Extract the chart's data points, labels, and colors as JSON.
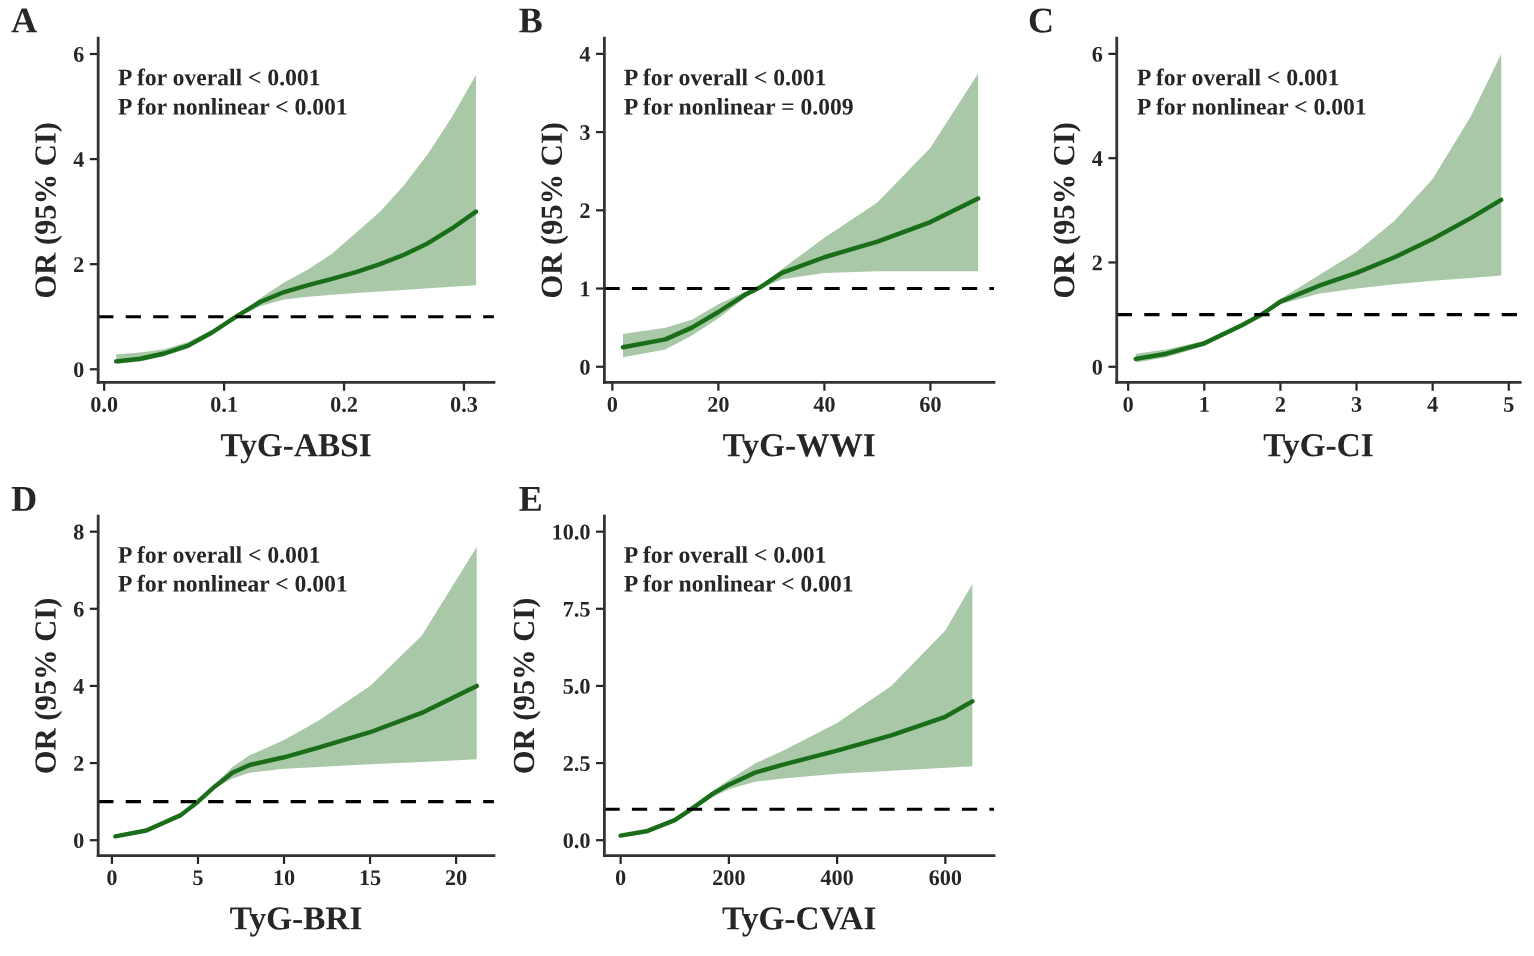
{
  "chart_data": [
    {
      "type": "line",
      "title": "A",
      "xlabel": "TyG-ABSI",
      "ylabel": "OR (95% CI)",
      "annotations": [
        "P for overall < 0.001",
        "P for nonlinear < 0.001"
      ],
      "xlim": [
        -0.005,
        0.325
      ],
      "xticks": [
        {
          "value": 0,
          "label": "0.0"
        },
        0.1,
        0.2,
        0.3
      ],
      "ylim": [
        -0.25,
        6.3
      ],
      "yticks": [
        0,
        2,
        4,
        6
      ],
      "grid": false,
      "legend": false,
      "ref_lines": [
        {
          "axis": "y",
          "value": 1,
          "color": "#000000",
          "line_style": "dashed"
        }
      ],
      "series": [
        {
          "color": "#1a6e1a",
          "x": [
            0.01,
            0.03,
            0.05,
            0.07,
            0.09,
            0.11,
            0.13,
            0.15,
            0.17,
            0.19,
            0.21,
            0.23,
            0.25,
            0.27,
            0.29,
            0.31
          ],
          "values": [
            0.15,
            0.2,
            0.3,
            0.45,
            0.7,
            1.0,
            1.28,
            1.47,
            1.6,
            1.72,
            1.85,
            2.0,
            2.18,
            2.4,
            2.68,
            3.0
          ],
          "lower": [
            0.1,
            0.15,
            0.25,
            0.4,
            0.67,
            0.98,
            1.2,
            1.33,
            1.38,
            1.42,
            1.45,
            1.48,
            1.51,
            1.54,
            1.57,
            1.6
          ],
          "upper": [
            0.28,
            0.32,
            0.38,
            0.52,
            0.75,
            1.02,
            1.35,
            1.65,
            1.9,
            2.2,
            2.6,
            3.0,
            3.5,
            4.1,
            4.8,
            5.6
          ]
        }
      ]
    },
    {
      "type": "line",
      "title": "B",
      "xlabel": "TyG-WWI",
      "ylabel": "OR (95% CI)",
      "annotations": [
        "P for overall < 0.001",
        "P for nonlinear = 0.009"
      ],
      "xlim": [
        -1.5,
        72
      ],
      "xticks": [
        0,
        20,
        40,
        60
      ],
      "ylim": [
        -0.2,
        4.2
      ],
      "yticks": [
        0,
        1,
        2,
        3,
        4
      ],
      "grid": false,
      "legend": false,
      "ref_lines": [
        {
          "axis": "y",
          "value": 1,
          "color": "#000000",
          "line_style": "dashed"
        }
      ],
      "series": [
        {
          "color": "#1a6e1a",
          "x": [
            2,
            10,
            15,
            20,
            25,
            28,
            32,
            40,
            50,
            60,
            69
          ],
          "values": [
            0.25,
            0.35,
            0.5,
            0.7,
            0.92,
            1.02,
            1.2,
            1.4,
            1.6,
            1.85,
            2.15
          ],
          "lower": [
            0.12,
            0.22,
            0.4,
            0.62,
            0.88,
            1.0,
            1.12,
            1.2,
            1.22,
            1.22,
            1.22
          ],
          "upper": [
            0.42,
            0.5,
            0.6,
            0.8,
            0.96,
            1.04,
            1.25,
            1.65,
            2.1,
            2.8,
            3.75
          ]
        }
      ]
    },
    {
      "type": "line",
      "title": "C",
      "xlabel": "TyG-CI",
      "ylabel": "OR (95% CI)",
      "annotations": [
        "P for overall < 0.001",
        "P for nonlinear < 0.001"
      ],
      "xlim": [
        -0.15,
        5.15
      ],
      "xticks": [
        0,
        1,
        2,
        3,
        4,
        5
      ],
      "ylim": [
        -0.3,
        6.3
      ],
      "yticks": [
        0,
        2,
        4,
        6
      ],
      "grid": false,
      "legend": false,
      "ref_lines": [
        {
          "axis": "y",
          "value": 1,
          "color": "#000000",
          "line_style": "dashed"
        }
      ],
      "series": [
        {
          "color": "#1a6e1a",
          "x": [
            0.1,
            0.5,
            1.0,
            1.5,
            1.75,
            2.0,
            2.5,
            3.0,
            3.5,
            4.0,
            4.5,
            4.9
          ],
          "values": [
            0.15,
            0.25,
            0.45,
            0.8,
            1.0,
            1.25,
            1.55,
            1.8,
            2.1,
            2.45,
            2.85,
            3.2
          ],
          "lower": [
            0.08,
            0.18,
            0.4,
            0.76,
            0.98,
            1.2,
            1.4,
            1.5,
            1.58,
            1.65,
            1.7,
            1.75
          ],
          "upper": [
            0.25,
            0.33,
            0.5,
            0.84,
            1.02,
            1.3,
            1.75,
            2.2,
            2.8,
            3.6,
            4.8,
            6.0
          ]
        }
      ]
    },
    {
      "type": "line",
      "title": "D",
      "xlabel": "TyG-BRI",
      "ylabel": "OR (95% CI)",
      "annotations": [
        "P for overall < 0.001",
        "P for nonlinear < 0.001"
      ],
      "xlim": [
        -0.8,
        22.2
      ],
      "xticks": [
        0,
        5,
        10,
        15,
        20
      ],
      "ylim": [
        -0.4,
        8.4
      ],
      "yticks": [
        0,
        2,
        4,
        6,
        8
      ],
      "grid": false,
      "legend": false,
      "ref_lines": [
        {
          "axis": "y",
          "value": 1,
          "color": "#000000",
          "line_style": "dashed"
        }
      ],
      "series": [
        {
          "color": "#1a6e1a",
          "x": [
            0.2,
            2,
            4,
            5,
            6,
            7,
            8,
            10,
            12,
            15,
            18,
            21.2
          ],
          "values": [
            0.1,
            0.25,
            0.65,
            1.0,
            1.4,
            1.75,
            1.95,
            2.15,
            2.4,
            2.8,
            3.3,
            4.0
          ],
          "lower": [
            0.08,
            0.22,
            0.62,
            0.98,
            1.35,
            1.6,
            1.75,
            1.85,
            1.9,
            1.97,
            2.03,
            2.1
          ],
          "upper": [
            0.12,
            0.28,
            0.68,
            1.02,
            1.45,
            1.9,
            2.2,
            2.6,
            3.1,
            4.0,
            5.3,
            7.6
          ]
        }
      ]
    },
    {
      "type": "line",
      "title": "E",
      "xlabel": "TyG-CVAI",
      "ylabel": "OR (95% CI)",
      "annotations": [
        "P for overall < 0.001",
        "P for nonlinear < 0.001"
      ],
      "xlim": [
        -30,
        690
      ],
      "xticks": [
        0,
        200,
        400,
        600
      ],
      "ylim": [
        -0.5,
        10.5
      ],
      "yticks": [
        {
          "value": 0,
          "label": "0.0"
        },
        {
          "value": 2.5,
          "label": "2.5"
        },
        {
          "value": 5,
          "label": "5.0"
        },
        {
          "value": 7.5,
          "label": "7.5"
        },
        {
          "value": 10,
          "label": "10.0"
        }
      ],
      "grid": false,
      "legend": false,
      "ref_lines": [
        {
          "axis": "y",
          "value": 1,
          "color": "#000000",
          "line_style": "dashed"
        }
      ],
      "series": [
        {
          "color": "#1a6e1a",
          "x": [
            0,
            50,
            100,
            130,
            170,
            200,
            250,
            300,
            400,
            500,
            600,
            650
          ],
          "values": [
            0.15,
            0.3,
            0.65,
            1.0,
            1.5,
            1.8,
            2.2,
            2.45,
            2.9,
            3.4,
            4.0,
            4.5
          ],
          "lower": [
            0.13,
            0.28,
            0.62,
            0.97,
            1.4,
            1.65,
            1.9,
            2.0,
            2.15,
            2.25,
            2.35,
            2.4
          ],
          "upper": [
            0.17,
            0.32,
            0.68,
            1.03,
            1.6,
            1.95,
            2.5,
            2.9,
            3.8,
            5.0,
            6.8,
            8.3
          ]
        }
      ]
    }
  ]
}
